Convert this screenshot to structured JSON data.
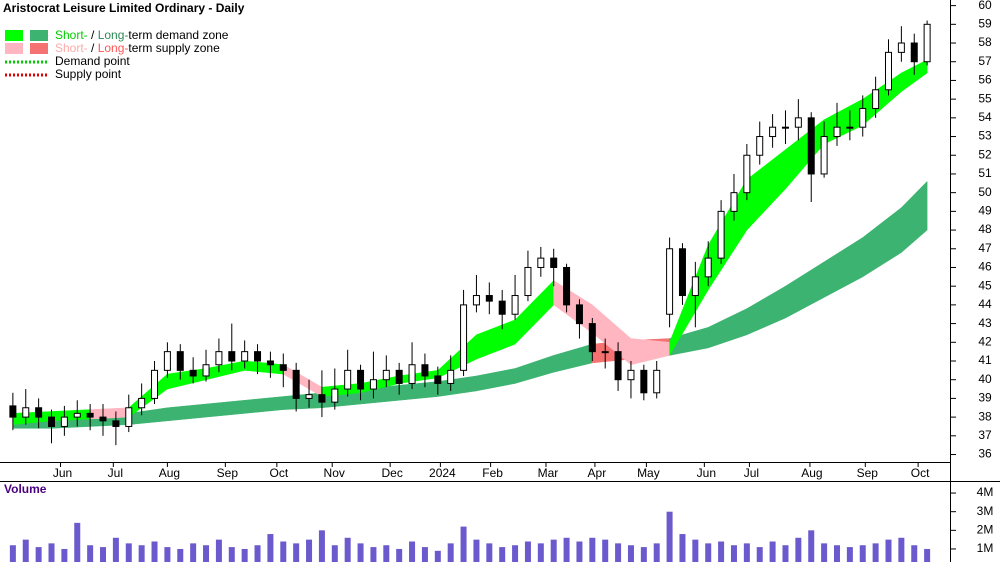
{
  "chart_data": {
    "type": "candlestick",
    "title": "Aristocrat Leisure Limited Ordinary - Daily",
    "legend": [
      {
        "parts": [
          {
            "text": "Short-",
            "color": "#00cc00"
          },
          {
            "text": " / "
          },
          {
            "text": "Long-",
            "color": "#2e8b57"
          },
          {
            "text": "term demand zone"
          }
        ],
        "swatches": [
          "#00ff00",
          "#3cb371"
        ]
      },
      {
        "parts": [
          {
            "text": "Short-",
            "color": "#ffaaaa"
          },
          {
            "text": " / "
          },
          {
            "text": "Long-",
            "color": "#ff5555"
          },
          {
            "text": "term supply zone"
          }
        ],
        "swatches": [
          "#ffb6c1",
          "#f47272"
        ]
      },
      {
        "parts": [
          {
            "text": "Demand point"
          }
        ],
        "line_color": "#00cc00"
      },
      {
        "parts": [
          {
            "text": "Supply point"
          }
        ],
        "line_color": "#dd0000"
      }
    ],
    "xlim": [
      -1,
      72
    ],
    "xticks": [
      {
        "value": 3.7,
        "label": "Jun"
      },
      {
        "value": 7.8,
        "label": "Jul"
      },
      {
        "value": 12.0,
        "label": "Aug"
      },
      {
        "value": 16.5,
        "label": "Sep"
      },
      {
        "value": 20.5,
        "label": "Oct"
      },
      {
        "value": 24.8,
        "label": "Nov"
      },
      {
        "value": 29.3,
        "label": "Dec"
      },
      {
        "value": 33.2,
        "label": "2024"
      },
      {
        "value": 37.1,
        "label": "Feb"
      },
      {
        "value": 41.4,
        "label": "Mar"
      },
      {
        "value": 45.2,
        "label": "Apr"
      },
      {
        "value": 49.2,
        "label": "May"
      },
      {
        "value": 53.7,
        "label": "Jun"
      },
      {
        "value": 57.2,
        "label": "Jul"
      },
      {
        "value": 61.9,
        "label": "Aug"
      },
      {
        "value": 66.2,
        "label": "Sep"
      },
      {
        "value": 70.3,
        "label": "Oct"
      }
    ],
    "ylim": [
      35.6,
      60.3
    ],
    "yticks": [
      36,
      37,
      38,
      39,
      40,
      41,
      42,
      43,
      44,
      45,
      46,
      47,
      48,
      49,
      50,
      51,
      52,
      53,
      54,
      55,
      56,
      57,
      58,
      59,
      60
    ],
    "up_color": "#ffffff",
    "down_color": "#000000",
    "open": [
      38.6,
      38.0,
      38.5,
      38.0,
      37.5,
      38.0,
      38.2,
      38.0,
      37.8,
      37.5,
      38.5,
      39.0,
      40.5,
      41.5,
      40.5,
      40.2,
      40.8,
      41.5,
      41.0,
      41.5,
      41.0,
      40.8,
      40.5,
      39.0,
      39.2,
      38.8,
      39.5,
      40.5,
      39.5,
      40.0,
      40.5,
      39.8,
      40.8,
      40.2,
      39.8,
      40.5,
      44.0,
      44.5,
      44.2,
      43.5,
      44.5,
      46.0,
      46.5,
      46.0,
      44.0,
      43.0,
      41.5,
      41.5,
      40.0,
      40.5,
      39.3,
      43.5,
      47.0,
      44.5,
      45.5,
      46.5,
      49.0,
      50.0,
      52.0,
      53.0,
      53.5,
      53.5,
      54.0,
      51.0,
      53.0,
      53.5,
      53.5,
      54.5,
      55.5,
      57.5,
      58.0,
      57.0
    ],
    "high": [
      39.3,
      39.5,
      39.0,
      38.4,
      38.6,
      38.9,
      38.7,
      38.7,
      38.3,
      39.2,
      39.8,
      41.0,
      42.0,
      41.9,
      41.2,
      41.6,
      42.2,
      43.0,
      42.1,
      41.9,
      41.5,
      41.4,
      40.9,
      40.0,
      40.5,
      40.6,
      41.6,
      40.8,
      41.5,
      41.3,
      40.9,
      42.0,
      41.4,
      40.7,
      41.3,
      44.8,
      45.6,
      45.2,
      44.8,
      45.6,
      46.9,
      47.1,
      47.0,
      46.2,
      44.3,
      43.3,
      42.2,
      42.0,
      41.0,
      40.8,
      41.0,
      47.6,
      47.3,
      46.3,
      47.4,
      49.6,
      51.0,
      52.6,
      53.8,
      54.2,
      54.4,
      55.0,
      54.3,
      53.8,
      54.8,
      54.4,
      55.2,
      56.2,
      58.2,
      58.9,
      58.5,
      59.2
    ],
    "low": [
      37.3,
      37.6,
      37.4,
      36.6,
      37.0,
      37.5,
      37.3,
      37.0,
      36.5,
      37.2,
      38.1,
      38.7,
      40.1,
      40.0,
      39.8,
      39.9,
      40.4,
      40.5,
      40.6,
      40.3,
      40.1,
      39.6,
      38.3,
      38.5,
      38.0,
      38.4,
      39.1,
      38.9,
      39.0,
      39.6,
      39.2,
      39.5,
      39.6,
      39.2,
      39.4,
      40.2,
      43.6,
      43.5,
      42.7,
      43.2,
      44.2,
      45.5,
      45.0,
      43.6,
      42.2,
      41.0,
      40.6,
      39.4,
      39.0,
      38.9,
      39.0,
      42.8,
      44.0,
      42.8,
      45.0,
      46.2,
      48.5,
      49.6,
      51.5,
      52.4,
      52.6,
      52.8,
      49.5,
      50.8,
      52.5,
      52.8,
      53.0,
      54.0,
      55.2,
      57.0,
      56.3,
      56.8
    ],
    "close": [
      38.0,
      38.5,
      38.0,
      37.5,
      38.0,
      38.2,
      38.0,
      37.8,
      37.5,
      38.5,
      39.0,
      40.5,
      41.5,
      40.5,
      40.2,
      40.8,
      41.5,
      41.0,
      41.5,
      41.0,
      40.8,
      40.5,
      39.0,
      39.2,
      38.8,
      39.5,
      40.5,
      39.5,
      40.0,
      40.5,
      39.8,
      40.8,
      40.2,
      39.8,
      40.5,
      44.0,
      44.5,
      44.2,
      43.5,
      44.5,
      46.0,
      46.5,
      46.0,
      44.0,
      43.0,
      41.5,
      41.5,
      40.0,
      40.5,
      39.3,
      40.5,
      47.0,
      44.5,
      45.5,
      46.5,
      49.0,
      50.0,
      52.0,
      53.0,
      53.5,
      53.5,
      54.0,
      51.0,
      53.0,
      53.5,
      53.5,
      54.5,
      55.5,
      57.5,
      58.0,
      57.0,
      59.0
    ],
    "zone_x": [
      0,
      3,
      6,
      9,
      12,
      15,
      18,
      21,
      24,
      27,
      30,
      33,
      36,
      39,
      42,
      45,
      48,
      51,
      54,
      57,
      60,
      63,
      66,
      69,
      71
    ],
    "short_zone_upper": [
      38.2,
      38.3,
      38.4,
      38.5,
      40.3,
      40.6,
      41.0,
      40.8,
      39.6,
      39.8,
      40.2,
      40.5,
      42.4,
      43.2,
      45.3,
      44.0,
      42.2,
      42.0,
      47.2,
      50.7,
      52.3,
      53.9,
      55.0,
      56.4,
      57.1
    ],
    "short_zone_lower": [
      37.6,
      37.8,
      37.9,
      38.0,
      39.5,
      40.0,
      40.5,
      40.3,
      39.1,
      39.3,
      39.8,
      40.1,
      41.1,
      41.9,
      44.0,
      42.5,
      40.8,
      41.3,
      44.8,
      48.0,
      50.2,
      52.6,
      53.6,
      55.4,
      56.4
    ],
    "long_zone_upper": [
      37.6,
      37.8,
      38.0,
      38.2,
      38.5,
      38.7,
      38.9,
      39.1,
      39.3,
      39.5,
      39.7,
      39.9,
      40.2,
      40.6,
      41.3,
      41.9,
      42.1,
      42.2,
      42.8,
      43.8,
      45.0,
      46.3,
      47.6,
      49.2,
      50.6
    ],
    "long_zone_lower": [
      37.4,
      37.4,
      37.5,
      37.6,
      37.8,
      38.0,
      38.2,
      38.4,
      38.5,
      38.7,
      38.9,
      39.1,
      39.4,
      39.8,
      40.4,
      40.9,
      41.1,
      41.3,
      41.7,
      42.4,
      43.3,
      44.4,
      45.5,
      46.8,
      48.0
    ],
    "volume_title": "Volume",
    "volume_color": "#6a5acd",
    "volume": [
      1200000,
      1500000,
      1100000,
      1300000,
      1000000,
      2400000,
      1200000,
      1100000,
      1600000,
      1300000,
      1200000,
      1400000,
      1100000,
      1000000,
      1300000,
      1200000,
      1500000,
      1100000,
      1000000,
      1200000,
      1800000,
      1400000,
      1300000,
      1500000,
      2000000,
      1200000,
      1600000,
      1300000,
      1100000,
      1200000,
      1000000,
      1400000,
      1100000,
      900000,
      1300000,
      2200000,
      1500000,
      1300000,
      1100000,
      1200000,
      1400000,
      1300000,
      1500000,
      1600000,
      1400000,
      1600000,
      1500000,
      1300000,
      1200000,
      1100000,
      1300000,
      3000000,
      1800000,
      1500000,
      1300000,
      1400000,
      1200000,
      1300000,
      1100000,
      1400000,
      1200000,
      1600000,
      2000000,
      1300000,
      1200000,
      1100000,
      1200000,
      1300000,
      1500000,
      1600000,
      1200000,
      1000000
    ],
    "volume_ylim": [
      300000,
      4400000
    ],
    "volume_yticks": [
      {
        "value": 1000000,
        "label": "1M"
      },
      {
        "value": 2000000,
        "label": "2M"
      },
      {
        "value": 3000000,
        "label": "3M"
      },
      {
        "value": 4000000,
        "label": "4M"
      }
    ]
  }
}
